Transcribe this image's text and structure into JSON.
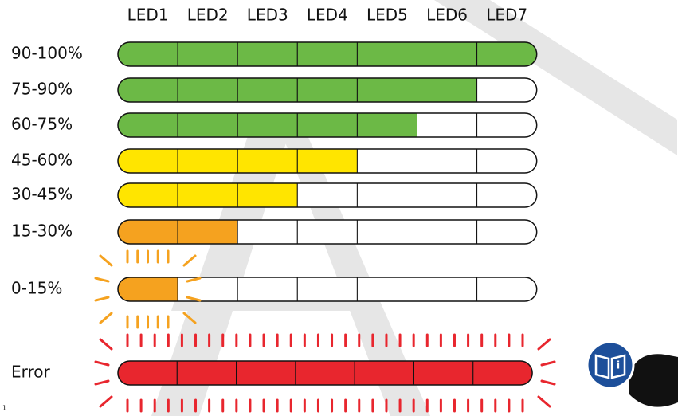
{
  "leds": [
    "LED1",
    "LED2",
    "LED3",
    "LED4",
    "LED5",
    "LED6",
    "LED7"
  ],
  "rows": [
    "90-100%",
    "75-90%",
    "60-75%",
    "45-60%",
    "30-45%",
    "15-30%",
    "0-15%",
    "Error"
  ],
  "footnote": "1"
}
